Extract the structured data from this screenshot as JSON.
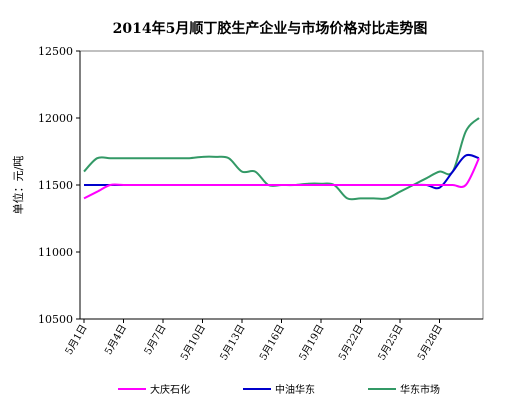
{
  "chart_data": {
    "type": "line",
    "title": "2014年5月顺丁胶生产企业与市场价格对比走势图",
    "ylabel": "单位：元/吨",
    "xlabel": "",
    "ylim": [
      10500,
      12500
    ],
    "yticks": [
      10500,
      11000,
      11500,
      12000,
      12500
    ],
    "xticks": [
      {
        "x": 1,
        "label": "5月1日"
      },
      {
        "x": 4,
        "label": "5月4日"
      },
      {
        "x": 7,
        "label": "5月7日"
      },
      {
        "x": 10,
        "label": "5月10日"
      },
      {
        "x": 13,
        "label": "5月13日"
      },
      {
        "x": 16,
        "label": "5月16日"
      },
      {
        "x": 19,
        "label": "5月19日"
      },
      {
        "x": 22,
        "label": "5月22日"
      },
      {
        "x": 25,
        "label": "5月25日"
      },
      {
        "x": 28,
        "label": "5月28日"
      }
    ],
    "xlim": [
      1,
      31
    ],
    "grid": false,
    "legend_position": "bottom",
    "series": [
      {
        "name": "大庆石化",
        "color": "#ff00ff",
        "x": [
          1,
          2,
          3,
          4,
          5,
          6,
          7,
          8,
          9,
          10,
          11,
          12,
          13,
          14,
          15,
          16,
          17,
          18,
          19,
          20,
          21,
          22,
          23,
          24,
          25,
          26,
          27,
          28,
          29,
          30,
          31
        ],
        "values": [
          11400,
          11450,
          11500,
          11500,
          11500,
          11500,
          11500,
          11500,
          11500,
          11500,
          11500,
          11500,
          11500,
          11500,
          11500,
          11500,
          11500,
          11500,
          11500,
          11500,
          11500,
          11500,
          11500,
          11500,
          11500,
          11500,
          11500,
          11500,
          11500,
          11500,
          11700
        ]
      },
      {
        "name": "中油华东",
        "color": "#0000cc",
        "x": [
          1,
          2,
          3,
          4,
          5,
          6,
          7,
          8,
          9,
          10,
          11,
          12,
          13,
          14,
          15,
          16,
          17,
          18,
          19,
          20,
          21,
          22,
          23,
          24,
          25,
          26,
          27,
          28,
          29,
          30,
          31
        ],
        "values": [
          11500,
          11500,
          11500,
          11500,
          11500,
          11500,
          11500,
          11500,
          11500,
          11500,
          11500,
          11500,
          11500,
          11500,
          11500,
          11500,
          11500,
          11500,
          11500,
          11500,
          11500,
          11500,
          11500,
          11500,
          11500,
          11500,
          11500,
          11480,
          11600,
          11720,
          11700
        ]
      },
      {
        "name": "华东市场",
        "color": "#339966",
        "x": [
          1,
          2,
          3,
          4,
          5,
          6,
          7,
          8,
          9,
          10,
          11,
          12,
          13,
          14,
          15,
          16,
          17,
          18,
          19,
          20,
          21,
          22,
          23,
          24,
          25,
          26,
          27,
          28,
          29,
          30,
          31
        ],
        "values": [
          11600,
          11700,
          11700,
          11700,
          11700,
          11700,
          11700,
          11700,
          11700,
          11710,
          11710,
          11700,
          11600,
          11600,
          11500,
          11500,
          11500,
          11510,
          11510,
          11500,
          11400,
          11400,
          11400,
          11400,
          11450,
          11500,
          11550,
          11600,
          11600,
          11900,
          12000
        ]
      }
    ]
  }
}
